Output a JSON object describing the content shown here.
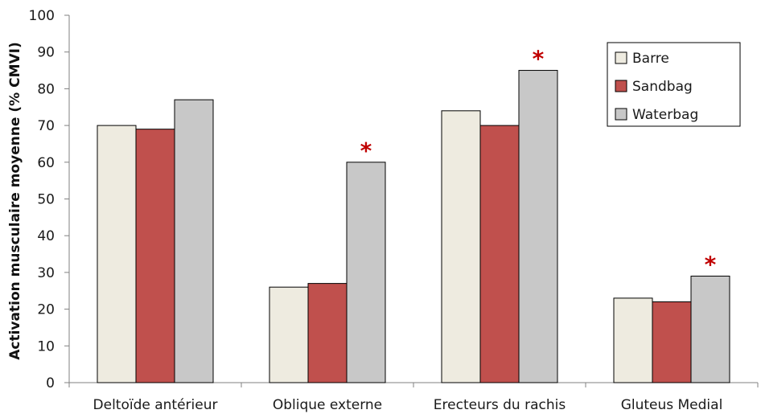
{
  "chart_data": {
    "type": "bar",
    "title": "",
    "xlabel": "",
    "ylabel": "Activation musculaire moyenne (% CMVI)",
    "ylim": [
      0,
      100
    ],
    "yticks": [
      0,
      10,
      20,
      30,
      40,
      50,
      60,
      70,
      80,
      90,
      100
    ],
    "categories": [
      "Deltoïde antérieur",
      "Oblique externe",
      "Erecteurs du rachis",
      "Gluteus Medial"
    ],
    "series": [
      {
        "name": "Barre",
        "color": "#eeebe0",
        "values": [
          70,
          26,
          74,
          23
        ]
      },
      {
        "name": "Sandbag",
        "color": "#c0504d",
        "values": [
          69,
          27,
          70,
          22
        ]
      },
      {
        "name": "Waterbag",
        "color": "#c8c8c8",
        "values": [
          77,
          60,
          85,
          29
        ]
      }
    ],
    "annotations": [
      {
        "text": "*",
        "category": "Oblique externe",
        "series": "Waterbag"
      },
      {
        "text": "*",
        "category": "Erecteurs du rachis",
        "series": "Waterbag"
      },
      {
        "text": "*",
        "category": "Gluteus Medial",
        "series": "Waterbag"
      }
    ],
    "annotation_color": "#c00000",
    "legend_position": "top-right",
    "grid": false
  }
}
